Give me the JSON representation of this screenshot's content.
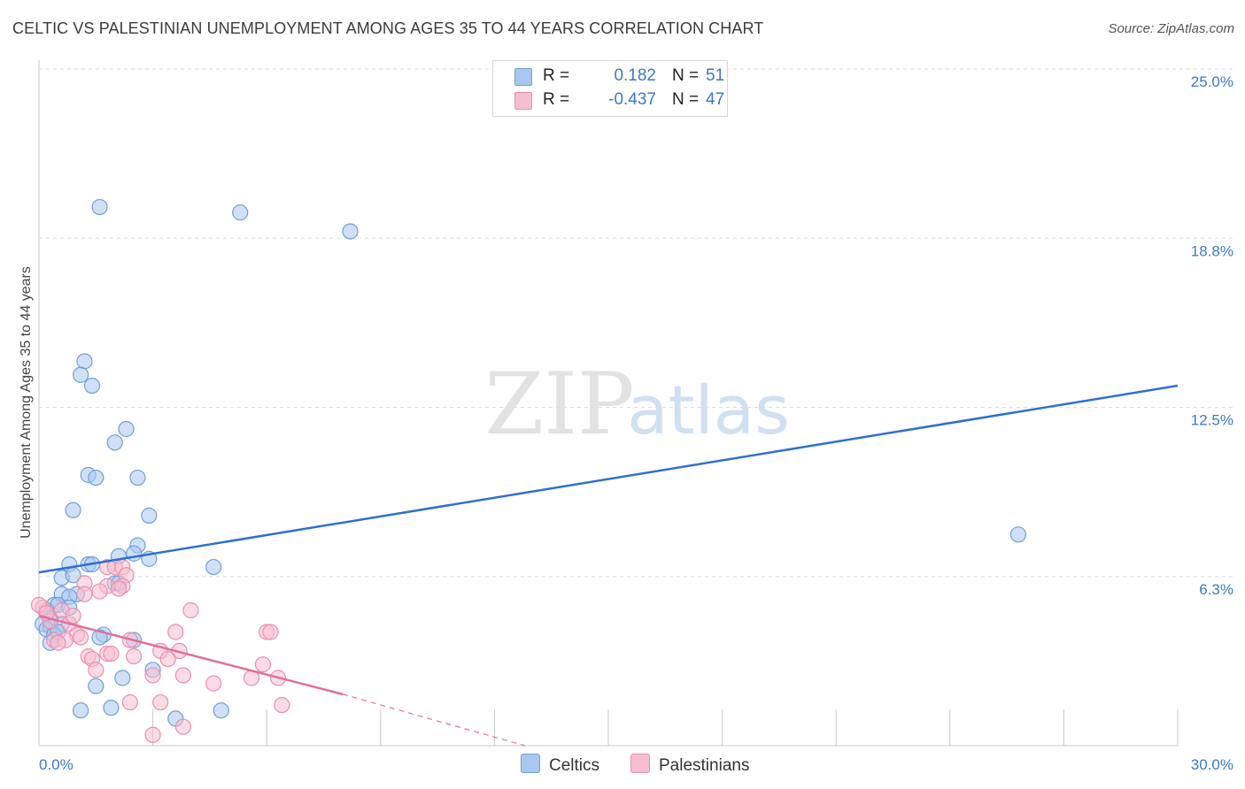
{
  "title": "CELTIC VS PALESTINIAN UNEMPLOYMENT AMONG AGES 35 TO 44 YEARS CORRELATION CHART",
  "source": "Source: ZipAtlas.com",
  "watermark": {
    "zip": "ZIP",
    "atlas": "atlas"
  },
  "colors": {
    "celtics_fill": "#a9c8f0",
    "celtics_stroke": "#6f9fd8",
    "celtics_line": "#2f6fcf",
    "palestinians_fill": "#f7bdd0",
    "palestinians_stroke": "#e98fad",
    "palestinians_line": "#e0709a",
    "axis_value": "#3b78c9",
    "grid": "#dddddd"
  },
  "legend": {
    "r_label": "R =",
    "n_label": "N =",
    "rows": [
      {
        "series": "Celtics",
        "r": "0.182",
        "n": "51"
      },
      {
        "series": "Palestinians",
        "r": "-0.437",
        "n": "47"
      }
    ]
  },
  "chart_data": {
    "type": "scatter",
    "title": "CELTIC VS PALESTINIAN UNEMPLOYMENT AMONG AGES 35 TO 44 YEARS CORRELATION CHART",
    "xlabel": "",
    "ylabel": "Unemployment Among Ages 35 to 44 years",
    "xlim": [
      0,
      30
    ],
    "ylim": [
      0,
      25
    ],
    "x_tick_labels": [
      "0.0%",
      "30.0%"
    ],
    "y_ticks": [
      {
        "value": 25.0,
        "label": "25.0%"
      },
      {
        "value": 18.75,
        "label": "18.8%"
      },
      {
        "value": 12.5,
        "label": "12.5%"
      },
      {
        "value": 6.25,
        "label": "6.3%"
      }
    ],
    "series": [
      {
        "name": "Celtics",
        "points": [
          [
            1.6,
            19.9
          ],
          [
            5.3,
            19.7
          ],
          [
            8.2,
            19.0
          ],
          [
            1.2,
            14.2
          ],
          [
            1.1,
            13.7
          ],
          [
            1.4,
            13.3
          ],
          [
            2.3,
            11.7
          ],
          [
            2.0,
            11.2
          ],
          [
            1.3,
            10.0
          ],
          [
            1.5,
            9.9
          ],
          [
            2.6,
            9.9
          ],
          [
            0.9,
            8.7
          ],
          [
            2.9,
            8.5
          ],
          [
            25.8,
            7.8
          ],
          [
            2.6,
            7.4
          ],
          [
            2.1,
            7.0
          ],
          [
            2.5,
            7.1
          ],
          [
            2.9,
            6.9
          ],
          [
            0.8,
            6.7
          ],
          [
            1.3,
            6.7
          ],
          [
            1.4,
            6.7
          ],
          [
            4.6,
            6.6
          ],
          [
            0.6,
            6.2
          ],
          [
            0.9,
            6.3
          ],
          [
            2.0,
            6.0
          ],
          [
            2.1,
            6.0
          ],
          [
            0.6,
            5.6
          ],
          [
            1.0,
            5.6
          ],
          [
            0.8,
            5.5
          ],
          [
            0.4,
            5.2
          ],
          [
            0.5,
            5.2
          ],
          [
            0.8,
            5.1
          ],
          [
            0.2,
            5.0
          ],
          [
            0.3,
            4.7
          ],
          [
            0.1,
            4.5
          ],
          [
            0.3,
            4.4
          ],
          [
            0.6,
            4.5
          ],
          [
            0.2,
            4.3
          ],
          [
            0.4,
            4.1
          ],
          [
            1.7,
            4.1
          ],
          [
            1.6,
            4.0
          ],
          [
            2.5,
            3.9
          ],
          [
            0.3,
            3.8
          ],
          [
            3.0,
            2.8
          ],
          [
            2.2,
            2.5
          ],
          [
            1.5,
            2.2
          ],
          [
            1.9,
            1.4
          ],
          [
            1.1,
            1.3
          ],
          [
            4.8,
            1.3
          ],
          [
            3.6,
            1.0
          ],
          [
            0.5,
            4.2
          ]
        ]
      },
      {
        "name": "Palestinians",
        "points": [
          [
            1.8,
            6.6
          ],
          [
            2.0,
            6.6
          ],
          [
            2.2,
            6.6
          ],
          [
            2.3,
            6.3
          ],
          [
            1.2,
            6.0
          ],
          [
            1.8,
            5.9
          ],
          [
            2.2,
            5.9
          ],
          [
            2.1,
            5.8
          ],
          [
            1.6,
            5.7
          ],
          [
            1.2,
            5.6
          ],
          [
            0.1,
            5.1
          ],
          [
            0.6,
            5.0
          ],
          [
            4.0,
            5.0
          ],
          [
            0.3,
            4.6
          ],
          [
            0.8,
            4.5
          ],
          [
            1.0,
            4.1
          ],
          [
            1.1,
            4.0
          ],
          [
            2.4,
            3.9
          ],
          [
            3.6,
            4.2
          ],
          [
            6.0,
            4.2
          ],
          [
            6.1,
            4.2
          ],
          [
            0.4,
            3.9
          ],
          [
            0.7,
            3.9
          ],
          [
            0.5,
            3.8
          ],
          [
            3.2,
            3.5
          ],
          [
            3.7,
            3.5
          ],
          [
            1.8,
            3.4
          ],
          [
            1.9,
            3.4
          ],
          [
            1.3,
            3.3
          ],
          [
            2.5,
            3.3
          ],
          [
            1.4,
            3.2
          ],
          [
            3.4,
            3.2
          ],
          [
            5.9,
            3.0
          ],
          [
            1.5,
            2.8
          ],
          [
            3.0,
            2.6
          ],
          [
            3.8,
            2.6
          ],
          [
            5.6,
            2.5
          ],
          [
            6.3,
            2.5
          ],
          [
            4.6,
            2.3
          ],
          [
            3.2,
            1.6
          ],
          [
            2.4,
            1.6
          ],
          [
            6.4,
            1.5
          ],
          [
            3.8,
            0.7
          ],
          [
            3.0,
            0.4
          ],
          [
            0.0,
            5.2
          ],
          [
            0.2,
            4.9
          ],
          [
            0.9,
            4.8
          ]
        ]
      }
    ],
    "trend_lines": [
      {
        "series": "Celtics",
        "x": [
          0,
          30
        ],
        "y": [
          6.4,
          13.3
        ],
        "style": "solid"
      },
      {
        "series": "Palestinians",
        "solid_x": [
          0,
          8.0
        ],
        "solid_y": [
          4.8,
          1.9
        ],
        "dashed_x": [
          8.0,
          12.8
        ],
        "dashed_y": [
          1.9,
          0.0
        ]
      }
    ]
  },
  "bottom_legend": [
    {
      "series": "Celtics",
      "label": "Celtics"
    },
    {
      "series": "Palestinians",
      "label": "Palestinians"
    }
  ]
}
